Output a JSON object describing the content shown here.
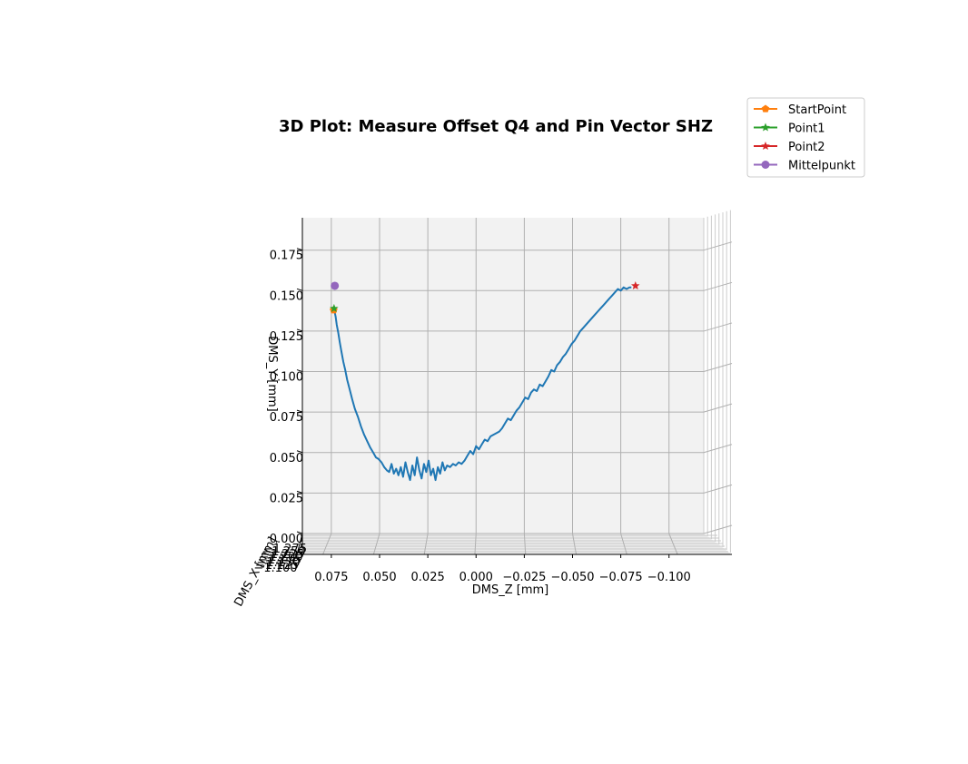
{
  "chart_data": {
    "type": "line",
    "title": "3D Plot: Measure Offset Q4 and Pin Vector SHZ",
    "xlabel": "DMS_Z [mm]",
    "ylabel": "DMS_Y [mm]",
    "zlabel": "DMS_X [mm]",
    "x_ticks": [
      0.075,
      0.05,
      0.025,
      0.0,
      -0.025,
      -0.05,
      -0.075,
      -0.1
    ],
    "x_tick_labels": [
      "0.075",
      "0.050",
      "0.025",
      "0.000",
      "−0.025",
      "−0.050",
      "−0.075",
      "−0.100"
    ],
    "y_ticks": [
      0.0,
      0.025,
      0.05,
      0.075,
      0.1,
      0.125,
      0.15,
      0.175
    ],
    "y_tick_labels": [
      "0.000",
      "0.025",
      "0.050",
      "0.075",
      "0.100",
      "0.125",
      "0.150",
      "0.175"
    ],
    "depth_tick_labels": [
      "−1.275",
      "−1.250",
      "−1.225",
      "−1.200",
      "−1.175",
      "−1.150",
      "−1.125",
      "−1.100"
    ],
    "xlim": [
      0.09,
      -0.118
    ],
    "ylim": [
      0.0,
      0.195
    ],
    "grid": true,
    "legend_placement": "top-right outside",
    "series": [
      {
        "color": "#1f77b4",
        "marker": "none",
        "x": [
          0.0735,
          0.0728,
          0.0722,
          0.0714,
          0.0706,
          0.0697,
          0.0688,
          0.0678,
          0.0668,
          0.0655,
          0.0642,
          0.0628,
          0.0612,
          0.0596,
          0.058,
          0.0564,
          0.0548,
          0.0533,
          0.0519,
          0.0505,
          0.049,
          0.0476,
          0.0462,
          0.045,
          0.0438,
          0.0426,
          0.0414,
          0.0402,
          0.039,
          0.0378,
          0.0366,
          0.0354,
          0.0342,
          0.033,
          0.0318,
          0.0306,
          0.0294,
          0.0282,
          0.027,
          0.0258,
          0.0246,
          0.0234,
          0.0222,
          0.021,
          0.0198,
          0.0186,
          0.0174,
          0.0162,
          0.015,
          0.0135,
          0.012,
          0.0105,
          0.009,
          0.0075,
          0.006,
          0.0045,
          0.003,
          0.0015,
          0.0,
          -0.0015,
          -0.003,
          -0.0045,
          -0.006,
          -0.0075,
          -0.009,
          -0.0105,
          -0.012,
          -0.0135,
          -0.015,
          -0.0165,
          -0.018,
          -0.0195,
          -0.021,
          -0.0225,
          -0.024,
          -0.0255,
          -0.027,
          -0.0285,
          -0.03,
          -0.0315,
          -0.033,
          -0.0345,
          -0.036,
          -0.0375,
          -0.039,
          -0.0405,
          -0.042,
          -0.0435,
          -0.045,
          -0.0465,
          -0.048,
          -0.0495,
          -0.051,
          -0.0525,
          -0.054,
          -0.0555,
          -0.057,
          -0.0585,
          -0.06,
          -0.0615,
          -0.063,
          -0.0645,
          -0.066,
          -0.0675,
          -0.069,
          -0.0705,
          -0.072,
          -0.0735,
          -0.075,
          -0.0765,
          -0.078,
          -0.0795,
          -0.0805
        ],
        "y": [
          0.138,
          0.134,
          0.129,
          0.124,
          0.118,
          0.112,
          0.106,
          0.101,
          0.095,
          0.089,
          0.083,
          0.077,
          0.072,
          0.066,
          0.061,
          0.057,
          0.053,
          0.05,
          0.047,
          0.046,
          0.044,
          0.041,
          0.039,
          0.038,
          0.043,
          0.037,
          0.04,
          0.036,
          0.041,
          0.035,
          0.044,
          0.038,
          0.033,
          0.042,
          0.036,
          0.047,
          0.039,
          0.034,
          0.043,
          0.038,
          0.045,
          0.036,
          0.04,
          0.033,
          0.041,
          0.037,
          0.044,
          0.039,
          0.042,
          0.041,
          0.043,
          0.042,
          0.044,
          0.043,
          0.045,
          0.048,
          0.051,
          0.049,
          0.054,
          0.052,
          0.055,
          0.058,
          0.057,
          0.06,
          0.061,
          0.062,
          0.063,
          0.065,
          0.068,
          0.071,
          0.07,
          0.073,
          0.076,
          0.078,
          0.081,
          0.084,
          0.083,
          0.087,
          0.089,
          0.088,
          0.092,
          0.091,
          0.094,
          0.097,
          0.101,
          0.1,
          0.104,
          0.106,
          0.109,
          0.111,
          0.114,
          0.117,
          0.119,
          0.122,
          0.125,
          0.127,
          0.129,
          0.131,
          0.133,
          0.135,
          0.137,
          0.139,
          0.141,
          0.143,
          0.145,
          0.147,
          0.149,
          0.151,
          0.15,
          0.152,
          0.151,
          0.152,
          0.152
        ]
      },
      {
        "name": "StartPoint",
        "color": "#ff7f0e",
        "marker": "pentagon",
        "x": [
          0.0738
        ],
        "y": [
          0.138
        ]
      },
      {
        "name": "Point1",
        "color": "#2ca02c",
        "marker": "star",
        "x": [
          0.0736
        ],
        "y": [
          0.139
        ]
      },
      {
        "name": "Point2",
        "color": "#d62728",
        "marker": "star",
        "x": [
          -0.0826
        ],
        "y": [
          0.153
        ]
      },
      {
        "name": "Mittelpunkt",
        "color": "#9467bd",
        "marker": "circle",
        "x": [
          0.0732
        ],
        "y": [
          0.153
        ]
      }
    ]
  }
}
